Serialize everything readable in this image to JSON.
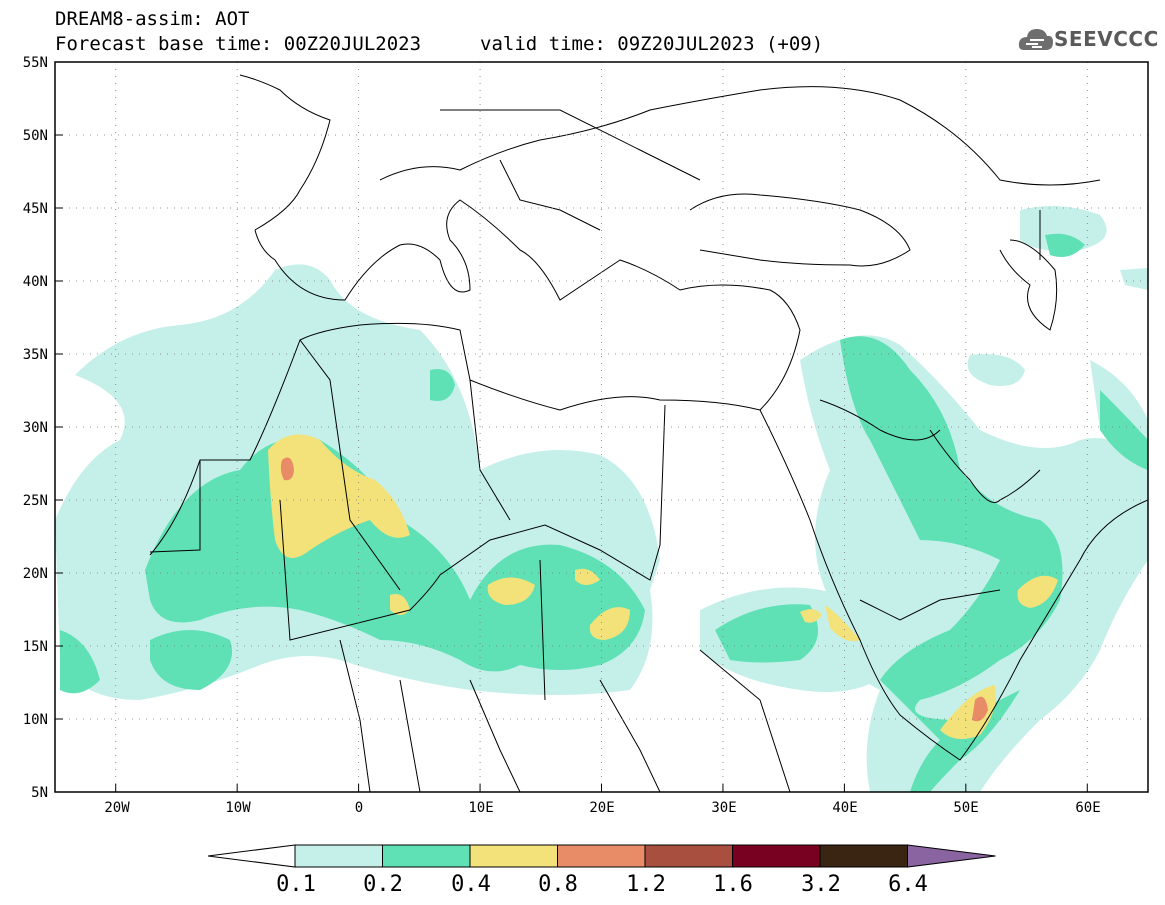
{
  "header": {
    "line1": "DREAM8-assim: AOT",
    "line2": "Forecast base time: 00Z20JUL2023",
    "valid": "valid time: 09Z20JUL2023 (+09)"
  },
  "logo": {
    "text": "SEEVCCC",
    "icon": "cloud-icon"
  },
  "map": {
    "lat_labels": [
      "55N",
      "50N",
      "45N",
      "40N",
      "35N",
      "30N",
      "25N",
      "20N",
      "15N",
      "10N",
      "5N"
    ],
    "lon_labels": [
      "20W",
      "10W",
      "0",
      "10E",
      "20E",
      "30E",
      "40E",
      "50E",
      "60E"
    ],
    "lat_range": [
      5,
      55
    ],
    "lon_range": [
      -25,
      65
    ]
  },
  "colorbar": {
    "labels": [
      "0.1",
      "0.2",
      "0.4",
      "0.8",
      "1.2",
      "1.6",
      "3.2",
      "6.4"
    ],
    "colors": [
      "#ffffff",
      "#c5f0ea",
      "#5fe0b5",
      "#f3e27a",
      "#e88b67",
      "#a94f3f",
      "#780020",
      "#3a2412",
      "#8a64a0"
    ]
  }
}
